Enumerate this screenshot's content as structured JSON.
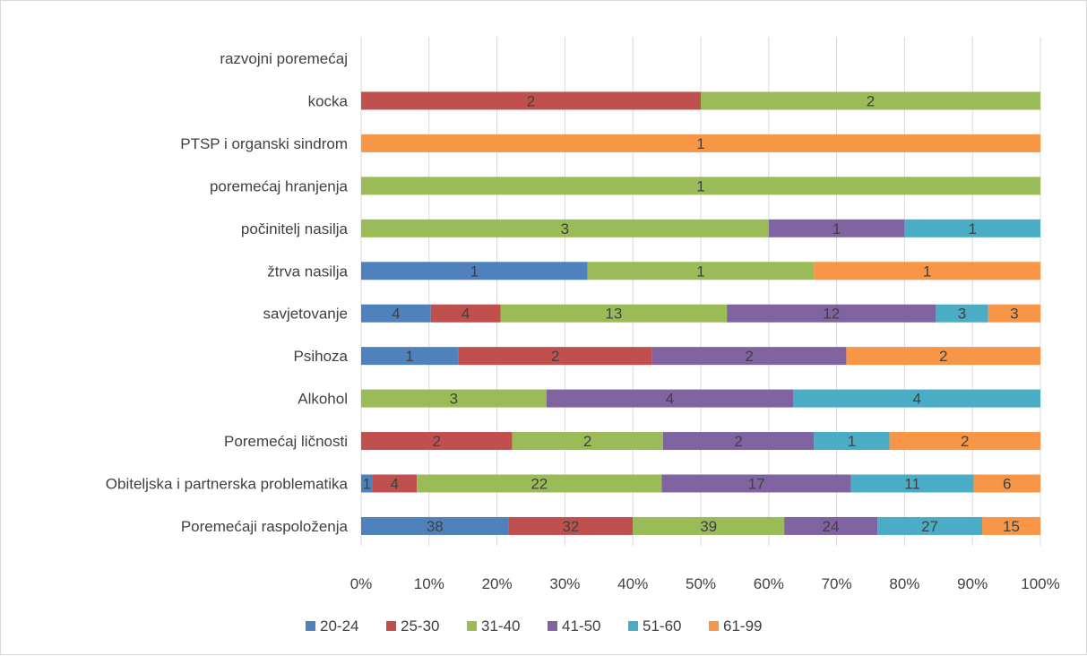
{
  "chart_data": {
    "type": "bar",
    "orientation": "horizontal",
    "stacked": "percent",
    "categories": [
      "razvojni poremećaj",
      "kocka",
      "PTSP i organski sindrom",
      "poremećaj hranjenja",
      "počinitelj nasilja",
      "žtrva nasilja",
      "savjetovanje",
      "Psihoza",
      "Alkohol",
      "Poremećaj ličnosti",
      "Obiteljska i partnerska problematika",
      "Poremećaji raspoloženja"
    ],
    "series": [
      {
        "name": "20-24",
        "color": "#4f81bd",
        "values": [
          0,
          0,
          0,
          0,
          0,
          1,
          4,
          1,
          0,
          0,
          1,
          38
        ]
      },
      {
        "name": "25-30",
        "color": "#c0504d",
        "values": [
          0,
          2,
          0,
          0,
          0,
          0,
          4,
          2,
          0,
          2,
          4,
          32
        ]
      },
      {
        "name": "31-40",
        "color": "#9bbb59",
        "values": [
          0,
          2,
          0,
          1,
          3,
          1,
          13,
          0,
          3,
          2,
          22,
          39
        ]
      },
      {
        "name": "41-50",
        "color": "#8064a2",
        "values": [
          0,
          0,
          0,
          0,
          1,
          0,
          12,
          2,
          4,
          2,
          17,
          24
        ]
      },
      {
        "name": "51-60",
        "color": "#4bacc6",
        "values": [
          0,
          0,
          0,
          0,
          1,
          0,
          3,
          0,
          4,
          1,
          11,
          27
        ]
      },
      {
        "name": "61-99",
        "color": "#f79646",
        "values": [
          0,
          0,
          1,
          0,
          0,
          1,
          3,
          2,
          0,
          2,
          6,
          15
        ]
      }
    ],
    "x_ticks": [
      "0%",
      "10%",
      "20%",
      "30%",
      "40%",
      "50%",
      "60%",
      "70%",
      "80%",
      "90%",
      "100%"
    ],
    "xlim": [
      0,
      100
    ],
    "grid": true,
    "legend_position": "bottom"
  }
}
